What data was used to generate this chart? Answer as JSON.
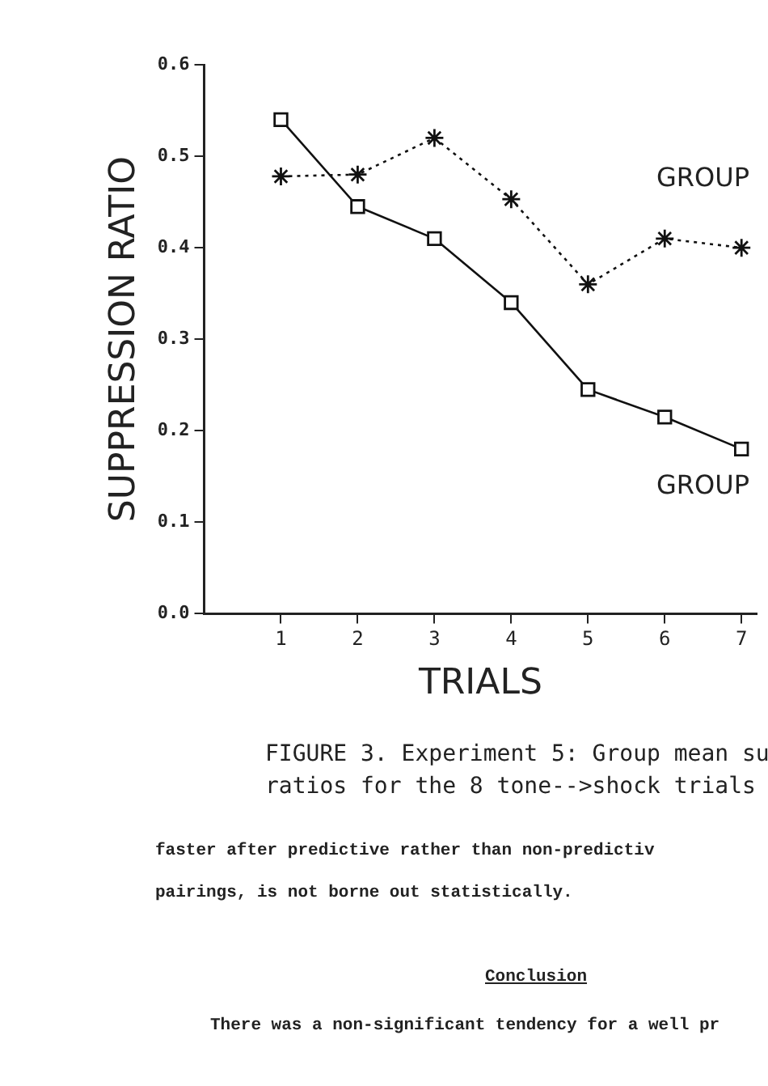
{
  "chart_data": {
    "type": "line",
    "xlabel": "TRIALS",
    "ylabel": "SUPPRESSION RATIO",
    "x": [
      1,
      2,
      3,
      4,
      5,
      6,
      7
    ],
    "series": [
      {
        "color": "#111111",
        "marker": "square",
        "line_style": "solid",
        "values": [
          0.54,
          0.445,
          0.41,
          0.34,
          0.245,
          0.215,
          0.18
        ]
      },
      {
        "color": "#111111",
        "marker": "cross",
        "line_style": "dotted",
        "values": [
          0.478,
          0.48,
          0.52,
          0.453,
          0.36,
          0.41,
          0.4
        ]
      }
    ],
    "xlim": [
      0,
      7.2
    ],
    "xticks": [
      1,
      2,
      3,
      4,
      5,
      6,
      7
    ],
    "ylim": [
      0,
      0.6
    ],
    "yticks": [
      {
        "value": 0,
        "label": "0.0"
      },
      {
        "value": 0.1,
        "label": "0.1"
      },
      {
        "value": 0.2,
        "label": "0.2"
      },
      {
        "value": 0.3,
        "label": "0.3"
      },
      {
        "value": 0.4,
        "label": "0.4"
      },
      {
        "value": 0.5,
        "label": "0.5"
      },
      {
        "value": 0.6,
        "label": "0.6"
      }
    ],
    "grid": false,
    "legend": false,
    "annotations": [
      "GROUP",
      "GROUP",
      "FIGURE 3. Experiment 5: Group mean su",
      "ratios for the 8 tone-->shock trials",
      "faster after predictive rather than non-predictiv",
      "pairings, is not borne out statistically.",
      "Conclusion",
      "There was a non-significant tendency for a well pr"
    ]
  }
}
